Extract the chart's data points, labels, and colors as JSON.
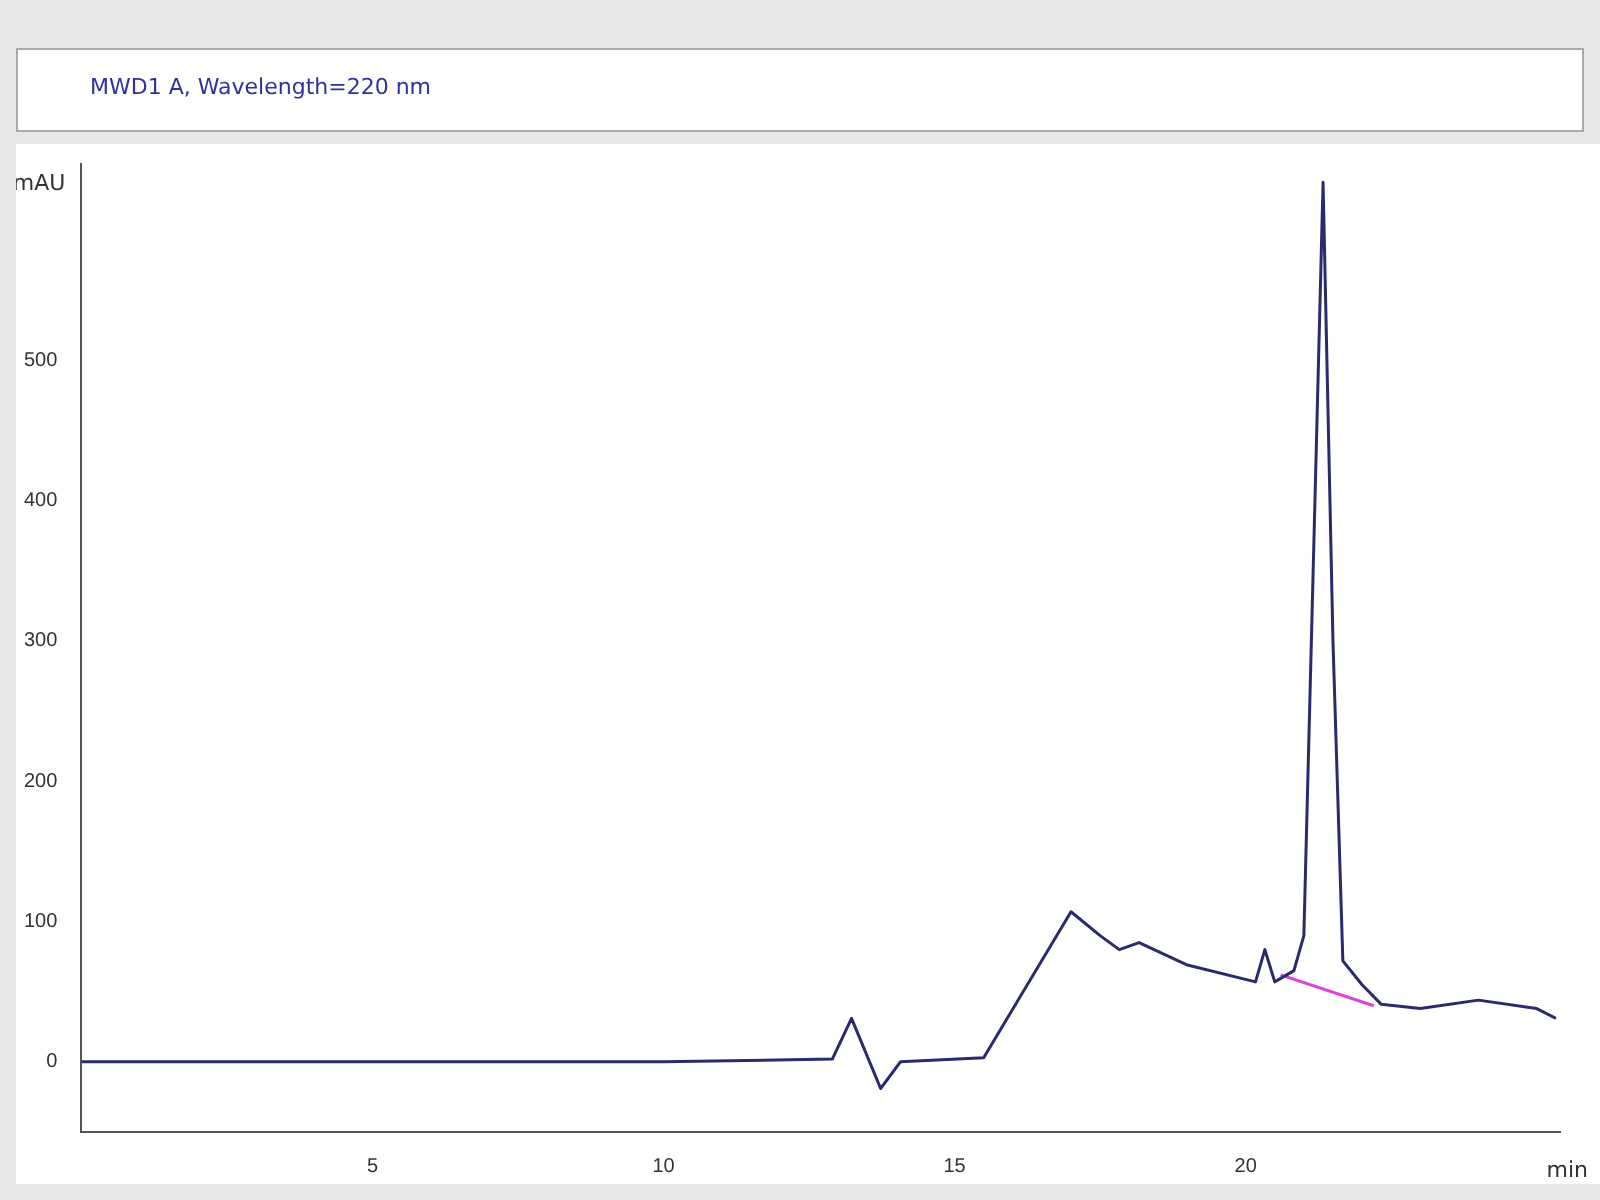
{
  "chart_data": {
    "type": "line",
    "title": "MWD1 A, Wavelength=220 nm",
    "xlabel": "min",
    "ylabel": "mAU",
    "xlim": [
      0,
      25.4
    ],
    "xticks": [
      5,
      10,
      15,
      20
    ],
    "ylim": [
      -50,
      640
    ],
    "yticks": [
      0,
      100,
      200,
      300,
      400,
      500
    ],
    "grid": false,
    "legend": false,
    "marker": "none",
    "line_style": "solid",
    "series": [
      {
        "color": "#2a2a6e",
        "x": [
          0,
          5,
          10,
          12.9,
          13.23,
          13.73,
          14.07,
          15.5,
          17.0,
          17.5,
          17.83,
          18.17,
          19.0,
          20.17,
          20.33,
          20.5,
          20.83,
          21.0,
          21.33,
          21.5,
          21.67,
          22.0,
          22.33,
          23,
          24,
          25,
          25.33
        ],
        "values": [
          0,
          0,
          0,
          2,
          31,
          -19,
          0,
          3,
          107,
          90,
          80,
          85,
          69,
          57,
          80,
          57,
          65,
          90,
          627,
          300,
          72,
          55,
          41,
          38,
          44,
          38,
          31
        ]
      },
      {
        "color": "#e040e0",
        "x": [
          20.6,
          22.2
        ],
        "values": [
          62,
          40
        ]
      }
    ]
  }
}
